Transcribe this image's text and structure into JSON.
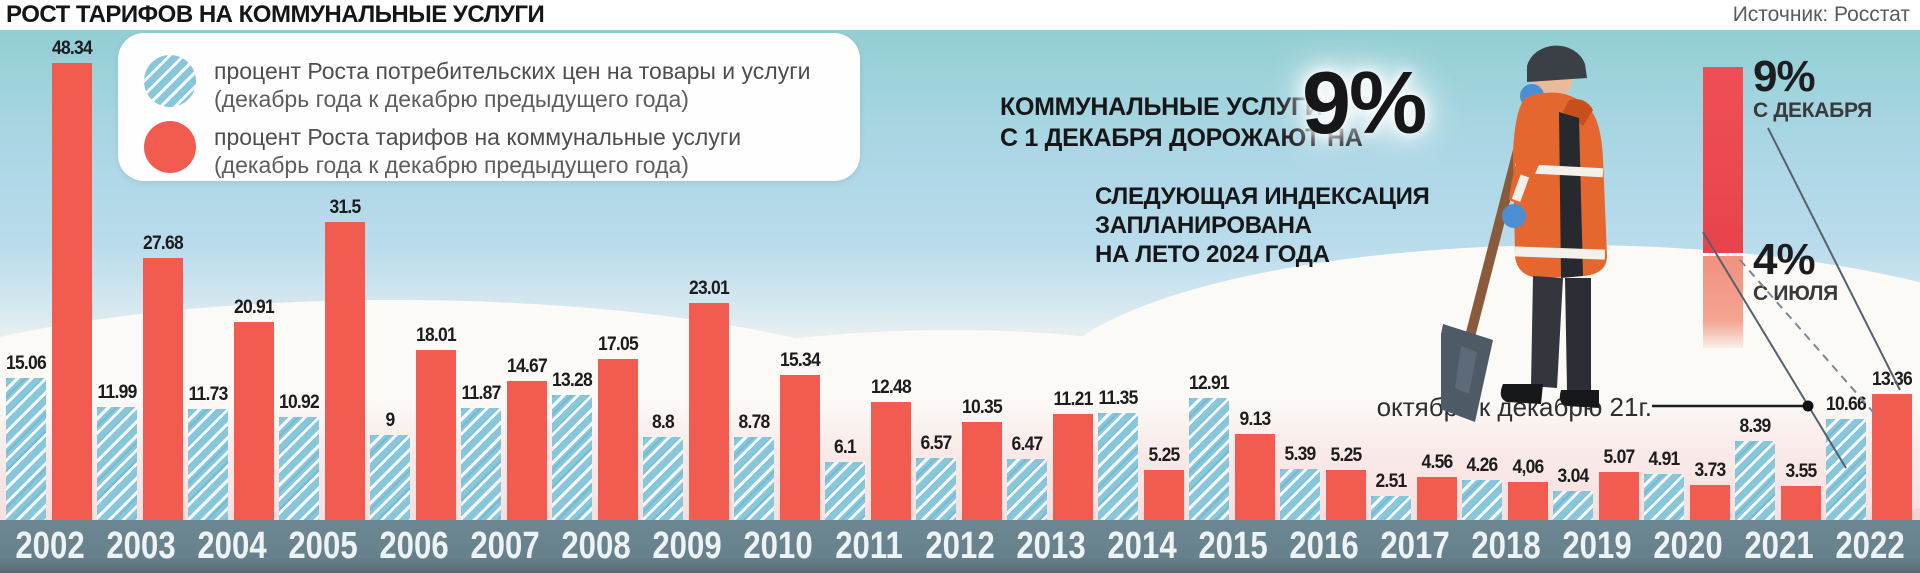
{
  "header": {
    "title": "РОСТ ТАРИФОВ НА КОММУНАЛЬНЫЕ УСЛУГИ",
    "source": "Источник: Росстат"
  },
  "legend": {
    "items": [
      {
        "swatch": "hatched-blue-circle",
        "line1": "процент Роста потребительских цен на товары и услуги",
        "line2": "(декабрь года к декабрю предыдущего года)"
      },
      {
        "swatch": "red-circle",
        "line1": "процент Роста тарифов на коммунальные услуги",
        "line2": "(декабрь года к декабрю предыдущего года)"
      }
    ]
  },
  "annotations": {
    "main_line1": "КОММУНАЛЬНЫЕ УСЛУГИ",
    "main_line2": "С 1 ДЕКАБРЯ ДОРОЖАЮТ НА",
    "main_big_value": "9%",
    "next_line1": "СЛЕДУЮЩАЯ ИНДЕКСАЦИЯ",
    "next_line2": "ЗАПЛАНИРОВАНА",
    "next_line3": "НА ЛЕТО 2024 ГОДА",
    "october_note": "октябрь к декабрю 21г.",
    "side_bar": {
      "top_value": "9%",
      "top_label": "С ДЕКАБРЯ",
      "bottom_value": "4%",
      "bottom_label": "С ИЮЛЯ",
      "top_color": "#e8434c",
      "bottom_color": "#f29180"
    }
  },
  "colors": {
    "tariff_red": "#f15b50",
    "cpi_blue": "#87c6db",
    "hatch_stripe": "#ffffff",
    "axis_band": "#66808c",
    "sky_teal": "#92ced3",
    "snow_pink": "#f2cbca",
    "year_text": "#eef3f5"
  },
  "chart_data": {
    "type": "bar",
    "title": "РОСТ ТАРИФОВ НА КОММУНАЛЬНЫЕ УСЛУГИ",
    "xlabel": "",
    "ylabel": "процент (декабрь года к декабрю предыдущего года)",
    "ylim": [
      0,
      50
    ],
    "grid": false,
    "legend_position": "top-left",
    "value_labels_shown": true,
    "categories": [
      "2002",
      "2003",
      "2004",
      "2005",
      "2006",
      "2007",
      "2008",
      "2009",
      "2010",
      "2011",
      "2012",
      "2013",
      "2014",
      "2015",
      "2016",
      "2017",
      "2018",
      "2019",
      "2020",
      "2021",
      "2022"
    ],
    "series": [
      {
        "name": "процент Роста потребительских цен на товары и услуги",
        "color": "#87c6db",
        "pattern": "diagonal-hatch",
        "values": [
          15.06,
          11.99,
          11.73,
          10.92,
          9,
          11.87,
          13.28,
          8.8,
          8.78,
          6.1,
          6.57,
          6.47,
          11.35,
          12.91,
          5.39,
          2.51,
          4.26,
          3.04,
          4.91,
          8.39,
          10.66
        ],
        "labels": [
          "15.06",
          "11.99",
          "11.73",
          "10.92",
          "9",
          "11.87",
          "13.28",
          "8.8",
          "8.78",
          "6.1",
          "6.57",
          "6.47",
          "11.35",
          "12.91",
          "5.39",
          "2.51",
          "4.26",
          "3.04",
          "4.91",
          "8.39",
          "10.66"
        ]
      },
      {
        "name": "процент Роста тарифов на коммунальные услуги",
        "color": "#f15b50",
        "pattern": "solid",
        "values": [
          48.34,
          27.68,
          20.91,
          31.5,
          18.01,
          14.67,
          17.05,
          23.01,
          15.34,
          12.48,
          10.35,
          11.21,
          5.25,
          9.13,
          5.25,
          4.56,
          4.06,
          5.07,
          3.73,
          3.55,
          13.36
        ],
        "labels": [
          "48.34",
          "27.68",
          "20.91",
          "31.5",
          "18.01",
          "14.67",
          "17.05",
          "23.01",
          "15.34",
          "12.48",
          "10.35",
          "11.21",
          "5.25",
          "9.13",
          "5.25",
          "4.56",
          "4,06",
          "5.07",
          "3.73",
          "3.55",
          "13.36"
        ]
      }
    ],
    "note_2022_cpi": "октябрь к декабрю 21г."
  }
}
